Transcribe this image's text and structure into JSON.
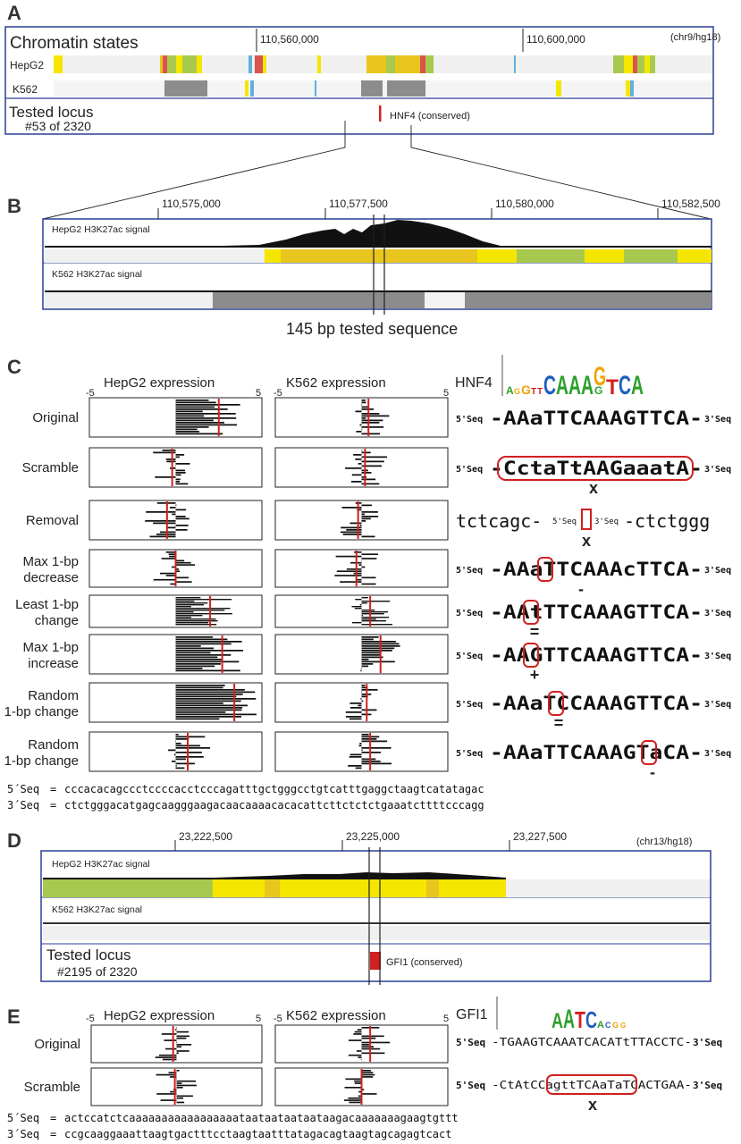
{
  "colors": {
    "frame": "#2b3f95",
    "hepg2_states": [
      "#f5e600",
      "#e9c61d",
      "#a8c94f",
      "#d9534f",
      "#5fb0e0",
      "#f0f0f0"
    ],
    "k562_state": "#8c8c8c",
    "signal": "#111111",
    "mean_line": "#d21f1f",
    "ring": "#d21f1f",
    "gfi1_mark": "#d21f1f"
  },
  "panelA": {
    "letter": "A",
    "title": "Chromatin states",
    "assembly": "(chr9/hg18)",
    "ticks": [
      "110,560,000",
      "110,600,000"
    ],
    "tracks": [
      "HepG2",
      "K562"
    ],
    "locus_title": "Tested locus",
    "locus_sub": "#53 of 2320",
    "tf_label": "HNF4 (conserved)"
  },
  "panelB": {
    "letter": "B",
    "ticks": [
      "110,575,000",
      "110,577,500",
      "110,580,000",
      "110,582,500"
    ],
    "tracks": [
      "HepG2 H3K27ac signal",
      "K562 H3K27ac signal"
    ],
    "tested_label": "145 bp  tested sequence"
  },
  "panelC": {
    "letter": "C",
    "axis_min": "-5",
    "axis_max": "5",
    "col_headers": [
      "HepG2 expression",
      "K562 expression"
    ],
    "motif_name": "HNF4",
    "prefix": "5'Seq",
    "suffix": "3'Seq",
    "rows": [
      {
        "label": [
          "Original"
        ],
        "hepg2_mean": 2.5,
        "k562_mean": 0.4,
        "seq": "AAaTTCAAAGTTCA",
        "mark": ""
      },
      {
        "label": [
          "Scramble"
        ],
        "hepg2_mean": -0.2,
        "k562_mean": 0.2,
        "seq": "CctaTtAAGaaatA",
        "mark": "X"
      },
      {
        "label": [
          "Removal"
        ],
        "hepg2_mean": -0.5,
        "k562_mean": -0.2,
        "seq": "",
        "flank_left": "tctcagc",
        "flank_right": "ctctggg",
        "mark": "X"
      },
      {
        "label": [
          "Max 1-bp",
          "decrease"
        ],
        "hepg2_mean": 0.0,
        "k562_mean": -0.3,
        "seq": "AAaTTCAAAcTTCA",
        "mark": "-"
      },
      {
        "label": [
          "Least 1-bp",
          "change"
        ],
        "hepg2_mean": 2.0,
        "k562_mean": 0.5,
        "seq": "AAtTTCAAAGTTCA",
        "mark": "="
      },
      {
        "label": [
          "Max 1-bp",
          "increase"
        ],
        "hepg2_mean": 2.7,
        "k562_mean": 1.1,
        "seq": "AAGTTCAAAGTTCA",
        "mark": "+"
      },
      {
        "label": [
          "Random",
          "1-bp change"
        ],
        "hepg2_mean": 3.4,
        "k562_mean": 0.3,
        "seq": "AAaTCCAAAGTTCA",
        "mark": "="
      },
      {
        "label": [
          "Random",
          "1-bp change"
        ],
        "hepg2_mean": 0.7,
        "k562_mean": 0.5,
        "seq": "AAaTTCAAAGTaCA",
        "mark": "-"
      }
    ],
    "seq5_label": "5´Seq",
    "seq3_label": "3´Seq",
    "seq5": "cccacacagccctccccacctcccagatttgctgggcctgtcatttgaggctaagtcatatagac",
    "seq3": "ctctgggacatgagcaagggaagacaacaaaacacacattcttctctctgaaatcttttcccagg"
  },
  "panelD": {
    "letter": "D",
    "ticks": [
      "23,222,500",
      "23,225,000",
      "23,227,500"
    ],
    "assembly": "(chr13/hg18)",
    "tracks": [
      "HepG2 H3K27ac signal",
      "K562 H3K27ac signal"
    ],
    "locus_title": "Tested locus",
    "locus_sub": "#2195 of 2320",
    "tf_label": "GFI1 (conserved)"
  },
  "panelE": {
    "letter": "E",
    "axis_min": "-5",
    "axis_max": "5",
    "col_headers": [
      "HepG2 expression",
      "K562 expression"
    ],
    "motif_name": "GFI1",
    "rows": [
      {
        "label": "Original",
        "hepg2_mean": -0.2,
        "k562_mean": 0.5,
        "seq": "-TGAAGTCAAATCACATtTTACCTC-",
        "mark": ""
      },
      {
        "label": "Scramble",
        "hepg2_mean": -0.1,
        "k562_mean": 0.0,
        "seq": "-CtAtCCagttTCAaTaTCACTGAA-",
        "mark": "X"
      }
    ],
    "prefix": "5'Seq",
    "suffix": "3'Seq",
    "seq5_label": "5´Seq",
    "seq3_label": "3´Seq",
    "seq5": "actccatctcaaaaaaaaaaaaaaaaataataataataataagacaaaaaaagaagtgttt",
    "seq3": "ccgcaaggaaattaagtgactttcctaagtaatttatagacagtaagtagcagagtcact"
  }
}
